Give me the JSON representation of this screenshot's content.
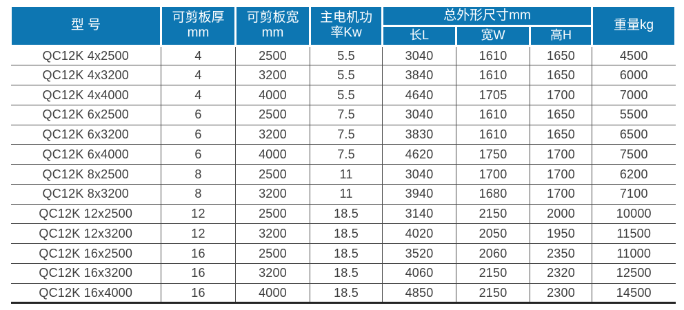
{
  "colors": {
    "header_bg": "#0d76b2",
    "header_text": "#ffffff",
    "body_text": "#3d3d3d",
    "grid_line": "#4a4a4a",
    "bottom_border": "#242424"
  },
  "table": {
    "header": {
      "model": "型 号",
      "thickness": "可剪板厚\nmm",
      "cut_width": "可剪板宽\nmm",
      "power": "主电机功\n率Kw",
      "dimensions_group": "总外形尺寸mm",
      "length": "长L",
      "width": "宽W",
      "height": "高H",
      "weight": "重量kg"
    },
    "column_keys": [
      "model",
      "thickness",
      "cut-width",
      "power",
      "length",
      "width",
      "height",
      "weight"
    ],
    "rows": [
      [
        "QC12K 4x2500",
        "4",
        "2500",
        "5.5",
        "3040",
        "1610",
        "1650",
        "4500"
      ],
      [
        "QC12K 4x3200",
        "4",
        "3200",
        "5.5",
        "3840",
        "1610",
        "1650",
        "6000"
      ],
      [
        "QC12K 4x4000",
        "4",
        "4000",
        "5.5",
        "4640",
        "1705",
        "1700",
        "7000"
      ],
      [
        "QC12K 6x2500",
        "6",
        "2500",
        "7.5",
        "3040",
        "1610",
        "1650",
        "5500"
      ],
      [
        "QC12K 6x3200",
        "6",
        "3200",
        "7.5",
        "3830",
        "1610",
        "1650",
        "6500"
      ],
      [
        "QC12K 6x4000",
        "6",
        "4000",
        "7.5",
        "4620",
        "1750",
        "1700",
        "7500"
      ],
      [
        "QC12K 8x2500",
        "8",
        "2500",
        "11",
        "3040",
        "1700",
        "1700",
        "6200"
      ],
      [
        "QC12K 8x3200",
        "8",
        "3200",
        "11",
        "3940",
        "1680",
        "1700",
        "7100"
      ],
      [
        "QC12K 12x2500",
        "12",
        "2500",
        "18.5",
        "3140",
        "2150",
        "2000",
        "10000"
      ],
      [
        "QC12K 12x3200",
        "12",
        "3200",
        "18.5",
        "4020",
        "2050",
        "1950",
        "11500"
      ],
      [
        "QC12K 16x2500",
        "16",
        "2500",
        "18.5",
        "3520",
        "2060",
        "2350",
        "11000"
      ],
      [
        "QC12K 16x3200",
        "16",
        "3200",
        "18.5",
        "4060",
        "2150",
        "2320",
        "12500"
      ],
      [
        "QC12K 16x4000",
        "16",
        "4000",
        "18.5",
        "4850",
        "2150",
        "2300",
        "14500"
      ]
    ]
  }
}
